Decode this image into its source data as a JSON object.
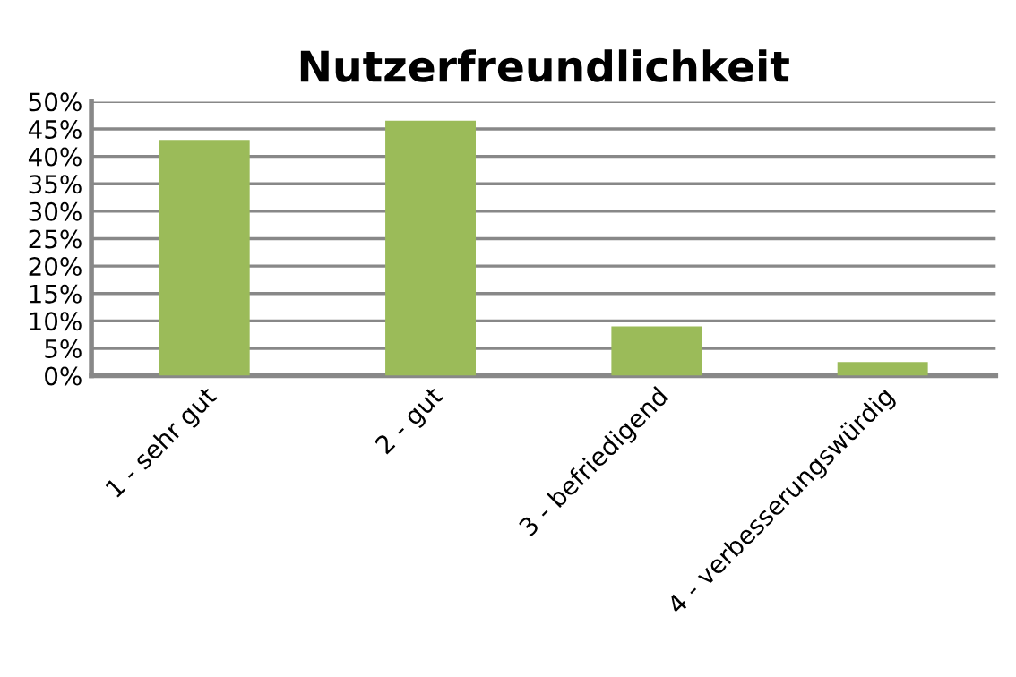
{
  "chart_data": {
    "type": "bar",
    "title": "Nutzerfreundlichkeit",
    "categories": [
      "1 - sehr gut",
      "2 - gut",
      "3 - befriedigend",
      "4 - verbesserungswürdig"
    ],
    "values": [
      43,
      46.5,
      9,
      2.5
    ],
    "color": "#9bbb59",
    "ylim": [
      0,
      50
    ],
    "yticks": [
      {
        "value": 0,
        "label": "0%"
      },
      {
        "value": 5,
        "label": "5%"
      },
      {
        "value": 10,
        "label": "10%"
      },
      {
        "value": 15,
        "label": "15%"
      },
      {
        "value": 20,
        "label": "20%"
      },
      {
        "value": 25,
        "label": "25%"
      },
      {
        "value": 30,
        "label": "30%"
      },
      {
        "value": 35,
        "label": "35%"
      },
      {
        "value": 40,
        "label": "40%"
      },
      {
        "value": 45,
        "label": "45%"
      },
      {
        "value": 50,
        "label": "50%"
      }
    ],
    "grid": "y"
  }
}
